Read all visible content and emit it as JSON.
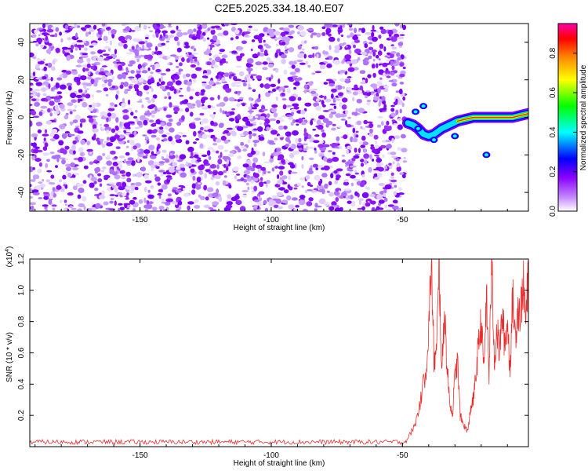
{
  "title": "C2E5.2025.334.18.40.E07",
  "chart_data": [
    {
      "type": "heatmap",
      "title": "C2E5.2025.334.18.40.E07",
      "xlabel": "Height of straight line (km)",
      "ylabel": "Frequency (Hz)",
      "xlim": [
        -192,
        -2
      ],
      "ylim": [
        -50,
        50
      ],
      "xticks": [
        -150,
        -100,
        -50
      ],
      "xtick_labels": [
        "-150",
        "-100",
        "-50"
      ],
      "yticks": [
        -40,
        -20,
        0,
        20,
        40
      ],
      "ytick_labels": [
        "-40",
        "-20",
        "0",
        "20",
        "40"
      ],
      "noise_region_km": [
        -192,
        -49
      ],
      "signal_trace": {
        "description": "bright narrowband signal near 0 Hz",
        "x": [
          -48,
          -46,
          -44,
          -42,
          -40,
          -38,
          -35,
          -32,
          -29,
          -26,
          -23,
          -20,
          -17,
          -14,
          -11,
          -8,
          -5,
          -2
        ],
        "y": [
          -3,
          -4,
          -6,
          -9,
          -10,
          -9,
          -6,
          -4,
          -2,
          -1,
          0,
          0,
          0,
          0,
          0,
          0,
          1,
          2
        ]
      },
      "colorbar": {
        "label": "Normalized spectral amplitude",
        "range": [
          0.0,
          0.95
        ],
        "ticks": [
          0.0,
          0.2,
          0.4,
          0.6,
          0.8
        ],
        "tick_labels": [
          "0.0",
          "0.2",
          "0.4",
          "0.6",
          "0.8"
        ],
        "colors": [
          "#ffffff",
          "#8800ff",
          "#0000ff",
          "#00ffff",
          "#00ff00",
          "#ffff00",
          "#ff8800",
          "#ff0000",
          "#ff00aa"
        ]
      }
    },
    {
      "type": "line",
      "xlabel": "Height of straight line (km)",
      "ylabel": "SNR (10 * v/v)",
      "y_multiplier": "(x10",
      "y_multiplier_exp": "4",
      "y_multiplier_close": ")",
      "xlim": [
        -192,
        -2
      ],
      "ylim": [
        0,
        1.2
      ],
      "xticks": [
        -150,
        -100,
        -50
      ],
      "xtick_labels": [
        "-150",
        "-100",
        "-50"
      ],
      "yticks": [
        0.2,
        0.4,
        0.6,
        0.8,
        1.0,
        1.2
      ],
      "ytick_labels": [
        "0.2",
        "0.4",
        "0.6",
        "0.8",
        "1.0",
        "1.2"
      ],
      "series": [
        {
          "name": "SNR",
          "color": "#e83030",
          "x": [
            -192,
            -150,
            -100,
            -60,
            -49,
            -47,
            -45,
            -43,
            -41,
            -40,
            -39,
            -38,
            -37,
            -36,
            -35,
            -34,
            -33,
            -32,
            -31,
            -30,
            -29,
            -28,
            -27,
            -26,
            -25,
            -24,
            -23,
            -22,
            -21,
            -20,
            -19,
            -18,
            -17,
            -16,
            -15,
            -14,
            -13,
            -12,
            -11,
            -10,
            -9,
            -8,
            -7,
            -6,
            -5,
            -4,
            -3,
            -2
          ],
          "values": [
            0.02,
            0.02,
            0.02,
            0.02,
            0.03,
            0.08,
            0.15,
            0.3,
            0.5,
            0.75,
            1.18,
            0.55,
            0.6,
            1.15,
            0.45,
            0.9,
            0.5,
            0.3,
            0.2,
            0.45,
            0.55,
            0.2,
            0.15,
            0.12,
            0.1,
            0.25,
            0.3,
            0.45,
            0.65,
            0.8,
            0.5,
            0.95,
            0.45,
            1.2,
            0.55,
            0.75,
            0.6,
            0.85,
            0.65,
            0.8,
            0.5,
            0.95,
            0.7,
            0.9,
            0.85,
            1.05,
            0.8,
            1.1
          ]
        }
      ]
    }
  ]
}
